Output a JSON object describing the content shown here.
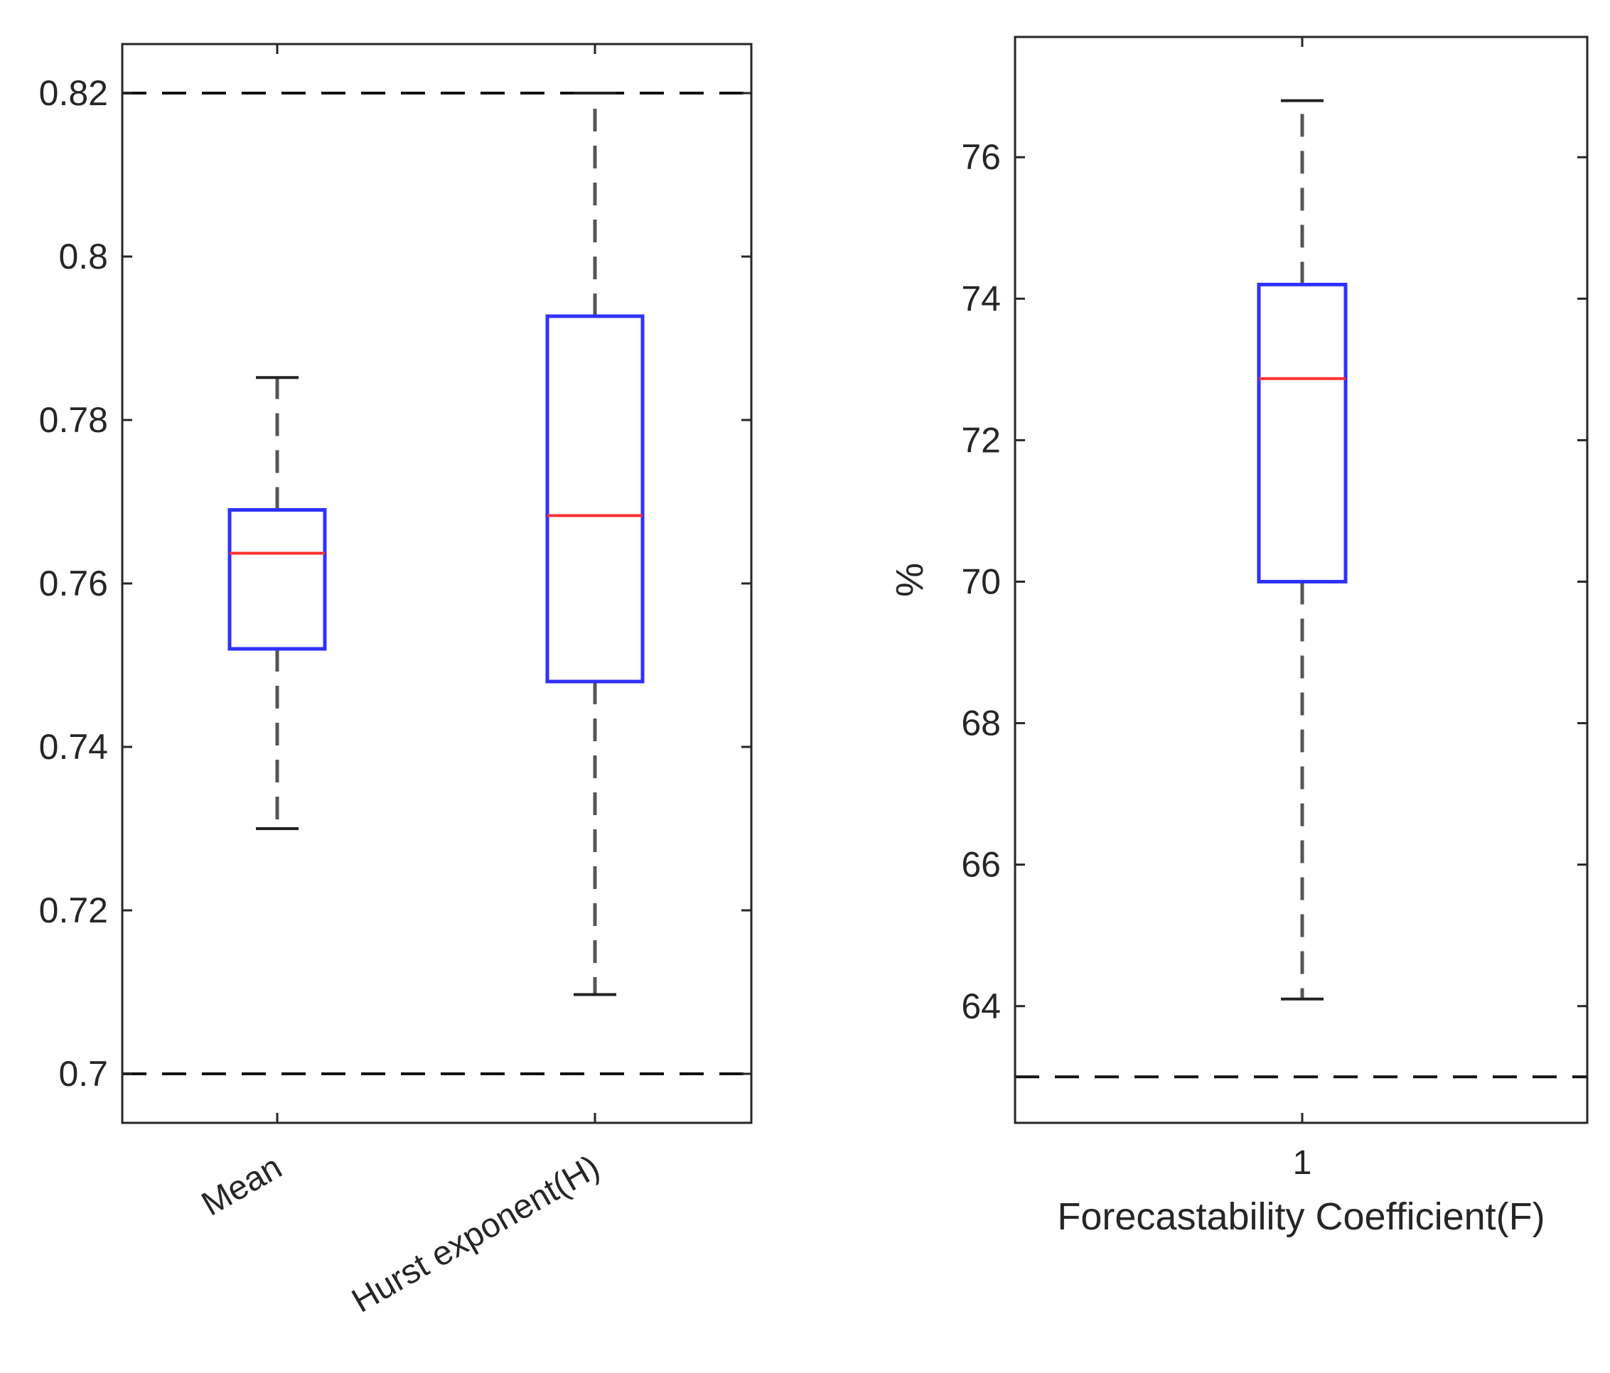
{
  "chart_data": [
    {
      "type": "boxplot",
      "title": "",
      "xlabel": "",
      "ylabel": "",
      "ylim": [
        0.694,
        0.826
      ],
      "yticks": [
        0.7,
        0.72,
        0.74,
        0.76,
        0.78,
        0.8,
        0.82
      ],
      "ytick_labels": [
        "0.7",
        "0.72",
        "0.74",
        "0.76",
        "0.78",
        "0.8",
        "0.82"
      ],
      "reference_lines": [
        0.82,
        0.7
      ],
      "categories": [
        "Mean",
        "Hurst exponent(H)"
      ],
      "boxes": [
        {
          "name": "Mean",
          "whisker_low": 0.73,
          "q1": 0.752,
          "median": 0.7637,
          "q3": 0.769,
          "whisker_high": 0.7852
        },
        {
          "name": "Hurst exponent(H)",
          "whisker_low": 0.7097,
          "q1": 0.748,
          "median": 0.7683,
          "q3": 0.7927,
          "whisker_high": 0.82
        }
      ],
      "colors": {
        "box": "#3030ff",
        "median": "#ff3030",
        "whisker": "#555555",
        "reference": "#111111"
      }
    },
    {
      "type": "boxplot",
      "title": "",
      "xlabel": "Forecastability Coefficient(F)",
      "ylabel": "%",
      "ylim": [
        62.35,
        77.7
      ],
      "yticks": [
        64,
        66,
        68,
        70,
        72,
        74,
        76
      ],
      "ytick_labels": [
        "64",
        "66",
        "68",
        "70",
        "72",
        "74",
        "76"
      ],
      "reference_lines": [
        63.0
      ],
      "categories": [
        "1"
      ],
      "boxes": [
        {
          "name": "1",
          "whisker_low": 64.1,
          "q1": 70.0,
          "median": 72.87,
          "q3": 74.2,
          "whisker_high": 76.8
        }
      ],
      "colors": {
        "box": "#3030ff",
        "median": "#ff3030",
        "whisker": "#555555",
        "reference": "#111111"
      }
    }
  ]
}
